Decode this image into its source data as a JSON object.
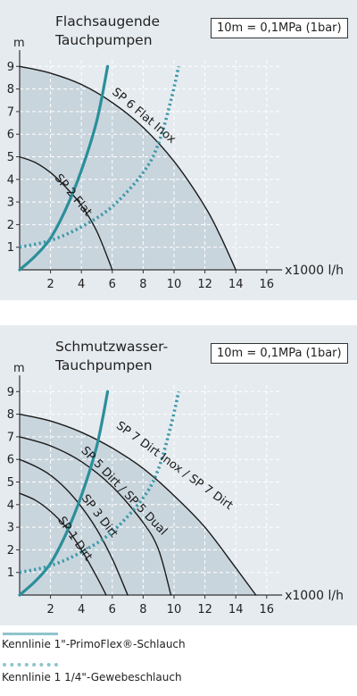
{
  "colors": {
    "panel_bg": "#e6ebef",
    "shade": "#c9d5dd",
    "curve": "#1a1a1a",
    "hose_solid": "#2b8f9a",
    "hose_dotted": "#3a98a8"
  },
  "chart_data": [
    {
      "type": "line",
      "title": [
        "Flachsaugende",
        "Tauchpumpen"
      ],
      "note": "10m = 0,1MPa (1bar)",
      "ylabel": "m",
      "xlabel": "x1000 l/h",
      "xlim": [
        0,
        17
      ],
      "ylim": [
        0,
        9.4
      ],
      "x_ticks": [
        2,
        4,
        6,
        8,
        10,
        12,
        14,
        16
      ],
      "y_ticks": [
        1,
        2,
        3,
        4,
        5,
        6,
        7,
        8,
        9
      ],
      "series": [
        {
          "name": "SP 6 Flat Inox",
          "style": "pump",
          "shaded": true,
          "points": [
            [
              0,
              9
            ],
            [
              2,
              8.7
            ],
            [
              4,
              8.2
            ],
            [
              6,
              7.4
            ],
            [
              8,
              6.3
            ],
            [
              10,
              4.8
            ],
            [
              12,
              2.8
            ],
            [
              13,
              1.5
            ],
            [
              14,
              0
            ]
          ]
        },
        {
          "name": "SP 2 Flat",
          "style": "pump",
          "shaded": true,
          "points": [
            [
              0,
              5
            ],
            [
              1,
              4.75
            ],
            [
              2,
              4.3
            ],
            [
              3,
              3.65
            ],
            [
              4,
              2.85
            ],
            [
              5,
              1.7
            ],
            [
              6,
              0
            ]
          ]
        },
        {
          "name": "Kennlinie 1\"-PrimoFlex®-Schlauch",
          "style": "hose-solid",
          "points": [
            [
              0,
              0
            ],
            [
              1,
              0.6
            ],
            [
              2,
              1.4
            ],
            [
              3,
              2.7
            ],
            [
              4,
              4.4
            ],
            [
              5,
              6.6
            ],
            [
              5.7,
              9
            ]
          ]
        },
        {
          "name": "Kennlinie 1 1/4\"-Gewebeschlauch",
          "style": "hose-dotted",
          "points": [
            [
              0,
              1
            ],
            [
              2,
              1.3
            ],
            [
              4,
              1.9
            ],
            [
              6,
              2.8
            ],
            [
              8,
              4.3
            ],
            [
              9,
              5.6
            ],
            [
              9.8,
              7.5
            ],
            [
              10.3,
              9
            ]
          ]
        }
      ],
      "labels": [
        {
          "text": "SP 6 Flat Inox",
          "at": [
            7.9,
            6.7
          ],
          "angle": 40
        },
        {
          "text": "SP 2 Flat",
          "at": [
            3.3,
            3.2
          ],
          "angle": 50
        }
      ]
    },
    {
      "type": "line",
      "title": [
        "Schmutzwasser-",
        "Tauchpumpen"
      ],
      "note": "10m = 0,1MPa (1bar)",
      "ylabel": "m",
      "xlabel": "x1000 l/h",
      "xlim": [
        0,
        17
      ],
      "ylim": [
        0,
        9.4
      ],
      "x_ticks": [
        2,
        4,
        6,
        8,
        10,
        12,
        14,
        16
      ],
      "y_ticks": [
        1,
        2,
        3,
        4,
        5,
        6,
        7,
        8,
        9
      ],
      "series": [
        {
          "name": "SP 7 Dirt Inox / SP 7 Dirt",
          "style": "pump",
          "shaded": true,
          "points": [
            [
              0,
              8
            ],
            [
              2,
              7.7
            ],
            [
              4,
              7.2
            ],
            [
              6,
              6.5
            ],
            [
              8,
              5.6
            ],
            [
              10,
              4.4
            ],
            [
              12,
              3
            ],
            [
              14,
              1.2
            ],
            [
              15.3,
              0
            ]
          ]
        },
        {
          "name": "SP 5 Dirt / SP 5 Dual",
          "style": "pump",
          "shaded": true,
          "points": [
            [
              0,
              7
            ],
            [
              2,
              6.6
            ],
            [
              4,
              5.9
            ],
            [
              6,
              4.8
            ],
            [
              8,
              3.2
            ],
            [
              9,
              2
            ],
            [
              9.8,
              0
            ]
          ]
        },
        {
          "name": "SP 3 Dirt",
          "style": "pump",
          "shaded": true,
          "points": [
            [
              0,
              6
            ],
            [
              1,
              5.7
            ],
            [
              2,
              5.3
            ],
            [
              3,
              4.7
            ],
            [
              4,
              3.9
            ],
            [
              5,
              2.9
            ],
            [
              6,
              1.6
            ],
            [
              7,
              0
            ]
          ]
        },
        {
          "name": "SP 1 Dirt",
          "style": "pump",
          "shaded": true,
          "points": [
            [
              0,
              4.5
            ],
            [
              1,
              4.2
            ],
            [
              2,
              3.7
            ],
            [
              3,
              3
            ],
            [
              4,
              2
            ],
            [
              5,
              0.8
            ],
            [
              5.6,
              0
            ]
          ]
        },
        {
          "name": "Kennlinie 1\"-PrimoFlex®-Schlauch",
          "style": "hose-solid",
          "points": [
            [
              0,
              0
            ],
            [
              1,
              0.6
            ],
            [
              2,
              1.4
            ],
            [
              3,
              2.7
            ],
            [
              4,
              4.4
            ],
            [
              5,
              6.6
            ],
            [
              5.7,
              9
            ]
          ]
        },
        {
          "name": "Kennlinie 1 1/4\"-Gewebeschlauch",
          "style": "hose-dotted",
          "points": [
            [
              0,
              1
            ],
            [
              2,
              1.3
            ],
            [
              4,
              1.9
            ],
            [
              6,
              2.8
            ],
            [
              8,
              4.3
            ],
            [
              9,
              5.6
            ],
            [
              9.8,
              7.5
            ],
            [
              10.3,
              9
            ]
          ]
        }
      ],
      "labels": [
        {
          "text": "SP 7 Dirt Inox / SP 7 Dirt",
          "at": [
            9.9,
            5.6
          ],
          "angle": 36
        },
        {
          "text": "SP 5 Dirt / SP 5 Dual",
          "at": [
            6.6,
            4.5
          ],
          "angle": 46
        },
        {
          "text": "SP 3 Dirt",
          "at": [
            5,
            3.4
          ],
          "angle": 52
        },
        {
          "text": "SP 1 Dirt",
          "at": [
            3.4,
            2.4
          ],
          "angle": 55
        }
      ]
    }
  ],
  "legend": {
    "solid_label": "Kennlinie 1\"-PrimoFlex®-Schlauch",
    "dotted_label": "Kennlinie 1 1/4\"-Gewebeschlauch"
  }
}
